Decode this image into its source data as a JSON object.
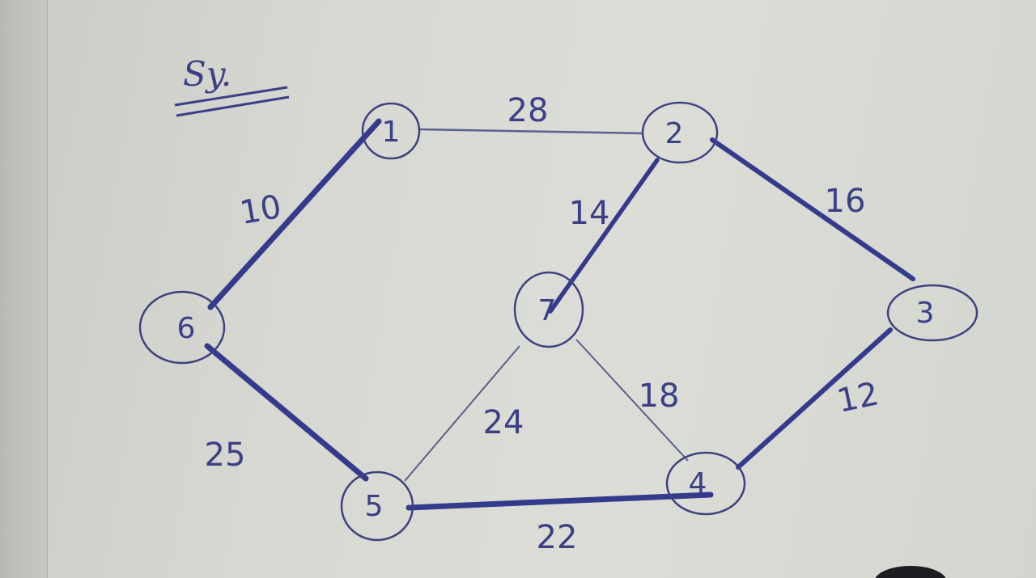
{
  "title": "Sy.",
  "colors": {
    "ink": "#3a3f86",
    "ink_thin": "#5b5f8e",
    "paper": "#dcddd7"
  },
  "nodes": [
    {
      "id": "1",
      "label": "1"
    },
    {
      "id": "2",
      "label": "2"
    },
    {
      "id": "3",
      "label": "3"
    },
    {
      "id": "4",
      "label": "4"
    },
    {
      "id": "5",
      "label": "5"
    },
    {
      "id": "6",
      "label": "6"
    },
    {
      "id": "7",
      "label": "7"
    }
  ],
  "edges": [
    {
      "from": "1",
      "to": "2",
      "weight": "28",
      "highlighted": false
    },
    {
      "from": "1",
      "to": "6",
      "weight": "10",
      "highlighted": true
    },
    {
      "from": "2",
      "to": "7",
      "weight": "14",
      "highlighted": true
    },
    {
      "from": "2",
      "to": "3",
      "weight": "16",
      "highlighted": true
    },
    {
      "from": "3",
      "to": "4",
      "weight": "12",
      "highlighted": true
    },
    {
      "from": "7",
      "to": "4",
      "weight": "18",
      "highlighted": false
    },
    {
      "from": "7",
      "to": "5",
      "weight": "24",
      "highlighted": false
    },
    {
      "from": "6",
      "to": "5",
      "weight": "25",
      "highlighted": true
    },
    {
      "from": "5",
      "to": "4",
      "weight": "22",
      "highlighted": true
    }
  ]
}
